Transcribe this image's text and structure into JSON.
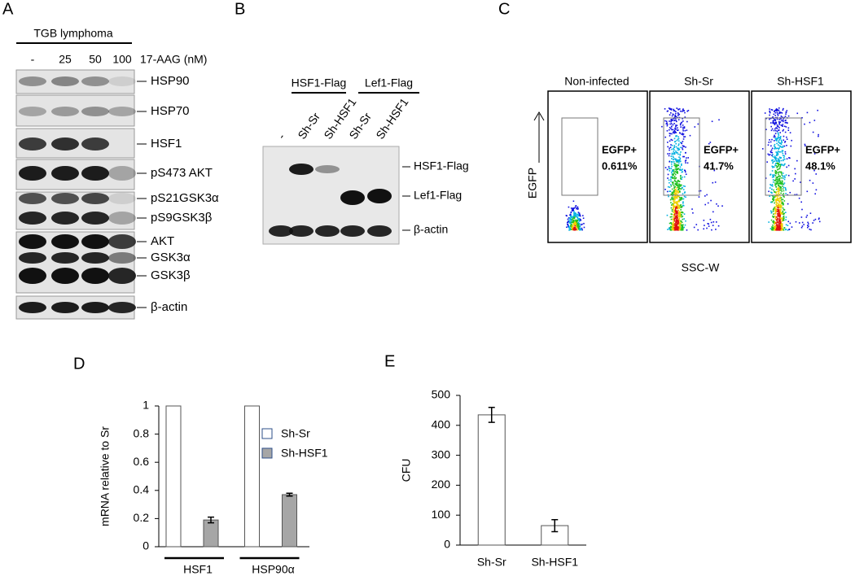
{
  "panel_a": {
    "label": "A",
    "header": "TGB lymphoma",
    "doses": [
      "-",
      "25",
      "50",
      "100"
    ],
    "treatment": "17-AAG (nM)",
    "bands": [
      "HSP90",
      "HSP70",
      "HSF1",
      "pS473 AKT",
      "pS21GSK3α",
      "pS9GSK3β",
      "AKT",
      "GSK3α",
      "GSK3β",
      "β-actin"
    ]
  },
  "panel_b": {
    "label": "B",
    "groups": [
      "HSF1-Flag",
      "Lef1-Flag"
    ],
    "lanes": [
      "-",
      "Sh-Sr",
      "Sh-HSF1",
      "Sh-Sr",
      "Sh-HSF1"
    ],
    "bands": [
      "HSF1-Flag",
      "Lef1-Flag",
      "β-actin"
    ]
  },
  "panel_c": {
    "label": "C",
    "y_label": "EGFP",
    "x_label": "SSC-W",
    "plots": [
      {
        "title": "Non-infected",
        "gate": "EGFP+",
        "percent": "0.611%"
      },
      {
        "title": "Sh-Sr",
        "gate": "EGFP+",
        "percent": "41.7%"
      },
      {
        "title": "Sh-HSF1",
        "gate": "EGFP+",
        "percent": "48.1%"
      }
    ]
  },
  "chart_data": [
    {
      "type": "bar",
      "label": "D",
      "y_label": "mRNA relative to Sr",
      "categories": [
        "HSF1",
        "HSP90α"
      ],
      "series": [
        {
          "name": "Sh-Sr",
          "color": "#ffffff",
          "values": [
            1,
            1
          ]
        },
        {
          "name": "Sh-HSF1",
          "color": "#a6a6a6",
          "values": [
            0.19,
            0.37
          ],
          "errors": [
            0.02,
            0.01
          ]
        }
      ],
      "ylim": [
        0,
        1
      ],
      "yticks": [
        0,
        0.2,
        0.4,
        0.6,
        0.8,
        1
      ]
    },
    {
      "type": "bar",
      "label": "E",
      "y_label": "CFU",
      "categories": [
        "Sh-Sr",
        "Sh-HSF1"
      ],
      "values": [
        435,
        65
      ],
      "errors": [
        25,
        20
      ],
      "color": "#ffffff",
      "ylim": [
        0,
        500
      ],
      "yticks": [
        0,
        100,
        200,
        300,
        400,
        500
      ]
    }
  ]
}
